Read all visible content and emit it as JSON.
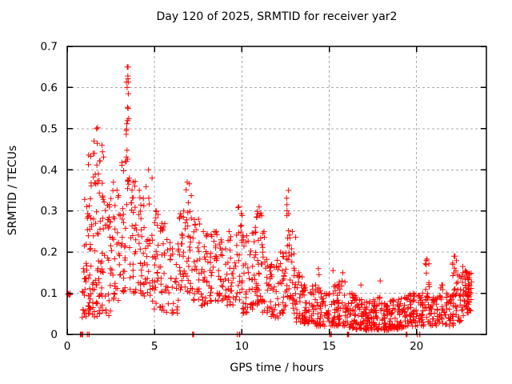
{
  "chart_data": {
    "type": "scatter",
    "title": "Day 120 of 2025, SRMTID for receiver yar2",
    "xlabel": "GPS time / hours",
    "ylabel": "SRMTID / TECUs",
    "xlim": [
      0,
      24
    ],
    "ylim": [
      0,
      0.7
    ],
    "xticks": {
      "values": [
        0,
        5,
        10,
        15,
        20
      ],
      "labels": [
        "0",
        "5",
        "10",
        "15",
        "20"
      ]
    },
    "yticks": {
      "values": [
        0,
        0.1,
        0.2,
        0.3,
        0.4,
        0.5,
        0.6,
        0.7
      ],
      "labels": [
        "0",
        "0.1",
        "0.2",
        "0.3",
        "0.4",
        "0.5",
        "0.6",
        "0.7"
      ]
    },
    "grid": true,
    "legend": "none",
    "marker": {
      "shape": "plus",
      "color": "#ff0000",
      "size": 7,
      "stroke_width": 1
    },
    "grid_color": "#a8a8a8",
    "border_color": "#000000",
    "x_data_range": [
      0.02,
      23.15
    ],
    "seed": 42,
    "representation": "burst_columns as [t_start,t_end,y_min,y_max,count,bottom_bias_exponent]",
    "columns": [
      [
        0.02,
        0.18,
        0.088,
        0.106,
        5,
        1.0
      ],
      [
        0.75,
        0.92,
        0.0,
        0.0,
        8,
        1.0
      ],
      [
        1.1,
        1.4,
        0.0,
        0.0,
        4,
        1.0
      ],
      [
        0.85,
        1.1,
        0.04,
        0.16,
        12,
        1.5
      ],
      [
        0.95,
        1.35,
        0.05,
        0.33,
        24,
        1.6
      ],
      [
        1.15,
        1.5,
        0.05,
        0.44,
        28,
        1.7
      ],
      [
        1.45,
        1.8,
        0.04,
        0.47,
        34,
        1.6
      ],
      [
        1.8,
        2.2,
        0.05,
        0.46,
        40,
        1.7
      ],
      [
        2.2,
        2.6,
        0.04,
        0.33,
        28,
        1.5
      ],
      [
        2.6,
        3.1,
        0.08,
        0.37,
        32,
        1.4
      ],
      [
        3.1,
        3.35,
        0.1,
        0.42,
        24,
        1.3
      ],
      [
        3.38,
        3.54,
        0.12,
        0.65,
        20,
        1.0
      ],
      [
        3.55,
        3.9,
        0.1,
        0.38,
        28,
        1.4
      ],
      [
        3.9,
        4.4,
        0.1,
        0.35,
        34,
        1.4
      ],
      [
        4.4,
        4.9,
        0.08,
        0.38,
        30,
        1.5
      ],
      [
        4.9,
        5.4,
        0.06,
        0.3,
        30,
        1.5
      ],
      [
        5.4,
        5.9,
        0.05,
        0.27,
        26,
        1.5
      ],
      [
        5.9,
        6.4,
        0.05,
        0.22,
        26,
        1.5
      ],
      [
        6.4,
        6.8,
        0.08,
        0.3,
        28,
        1.4
      ],
      [
        6.8,
        7.15,
        0.1,
        0.37,
        26,
        1.3
      ],
      [
        7.0,
        7.25,
        0.0,
        0.0,
        3,
        1.0
      ],
      [
        7.15,
        7.6,
        0.08,
        0.28,
        28,
        1.5
      ],
      [
        7.6,
        8.1,
        0.07,
        0.25,
        28,
        1.5
      ],
      [
        8.1,
        8.6,
        0.08,
        0.25,
        30,
        1.5
      ],
      [
        8.6,
        9.1,
        0.08,
        0.23,
        28,
        1.5
      ],
      [
        9.1,
        9.6,
        0.07,
        0.25,
        28,
        1.5
      ],
      [
        9.6,
        10.05,
        0.08,
        0.31,
        28,
        1.4
      ],
      [
        9.7,
        9.9,
        0.0,
        0.0,
        3,
        1.0
      ],
      [
        10.05,
        10.45,
        0.05,
        0.24,
        28,
        1.6
      ],
      [
        10.45,
        10.8,
        0.06,
        0.26,
        26,
        1.5
      ],
      [
        10.8,
        11.15,
        0.07,
        0.31,
        30,
        1.4
      ],
      [
        11.15,
        11.6,
        0.05,
        0.25,
        28,
        1.6
      ],
      [
        11.6,
        12.1,
        0.04,
        0.18,
        30,
        1.6
      ],
      [
        12.1,
        12.55,
        0.05,
        0.2,
        28,
        1.5
      ],
      [
        12.55,
        12.75,
        0.08,
        0.35,
        22,
        1.1
      ],
      [
        12.75,
        13.1,
        0.05,
        0.25,
        24,
        1.6
      ],
      [
        13.1,
        13.5,
        0.03,
        0.15,
        28,
        1.5
      ],
      [
        13.5,
        14.0,
        0.025,
        0.12,
        34,
        1.5
      ],
      [
        14.0,
        14.5,
        0.02,
        0.12,
        34,
        1.5
      ],
      [
        14.5,
        15.0,
        0.02,
        0.1,
        34,
        1.5
      ],
      [
        15.0,
        15.2,
        0.0,
        0.0,
        3,
        1.0
      ],
      [
        15.0,
        15.5,
        0.02,
        0.12,
        34,
        1.5
      ],
      [
        15.5,
        16.0,
        0.02,
        0.13,
        34,
        1.5
      ],
      [
        16.0,
        16.2,
        0.0,
        0.0,
        3,
        1.0
      ],
      [
        16.0,
        16.5,
        0.015,
        0.1,
        38,
        1.6
      ],
      [
        16.5,
        17.0,
        0.012,
        0.09,
        38,
        1.6
      ],
      [
        17.0,
        17.5,
        0.01,
        0.08,
        40,
        1.5
      ],
      [
        17.5,
        18.0,
        0.01,
        0.09,
        40,
        1.5
      ],
      [
        18.0,
        18.5,
        0.01,
        0.08,
        40,
        1.5
      ],
      [
        18.5,
        19.0,
        0.012,
        0.085,
        40,
        1.5
      ],
      [
        19.38,
        19.46,
        0.0,
        0.0,
        2,
        1.0
      ],
      [
        19.0,
        19.5,
        0.015,
        0.09,
        38,
        1.5
      ],
      [
        19.5,
        20.0,
        0.02,
        0.1,
        36,
        1.5
      ],
      [
        20.02,
        20.22,
        0.0,
        0.0,
        3,
        1.0
      ],
      [
        20.0,
        20.45,
        0.02,
        0.1,
        30,
        1.5
      ],
      [
        20.45,
        20.75,
        0.03,
        0.18,
        24,
        1.2
      ],
      [
        20.75,
        21.2,
        0.02,
        0.09,
        30,
        1.5
      ],
      [
        21.2,
        21.7,
        0.02,
        0.12,
        28,
        1.5
      ],
      [
        21.7,
        22.1,
        0.02,
        0.1,
        28,
        1.5
      ],
      [
        22.05,
        22.35,
        0.04,
        0.19,
        24,
        1.2
      ],
      [
        22.35,
        22.75,
        0.03,
        0.15,
        30,
        1.3
      ],
      [
        22.75,
        23.15,
        0.05,
        0.155,
        55,
        1.0
      ]
    ],
    "outlier_points": [
      [
        1.68,
        0.5
      ],
      [
        1.74,
        0.502
      ],
      [
        3.44,
        0.65
      ],
      [
        3.47,
        0.628
      ],
      [
        3.43,
        0.6
      ],
      [
        3.5,
        0.585
      ],
      [
        3.46,
        0.552
      ],
      [
        3.41,
        0.512
      ],
      [
        4.66,
        0.4
      ],
      [
        14.38,
        0.16
      ],
      [
        14.42,
        0.145
      ],
      [
        15.22,
        0.155
      ],
      [
        15.78,
        0.15
      ],
      [
        16.82,
        0.12
      ],
      [
        17.92,
        0.13
      ],
      [
        20.6,
        0.183
      ],
      [
        21.45,
        0.12
      ],
      [
        22.2,
        0.19
      ],
      [
        22.65,
        0.165
      ]
    ]
  }
}
